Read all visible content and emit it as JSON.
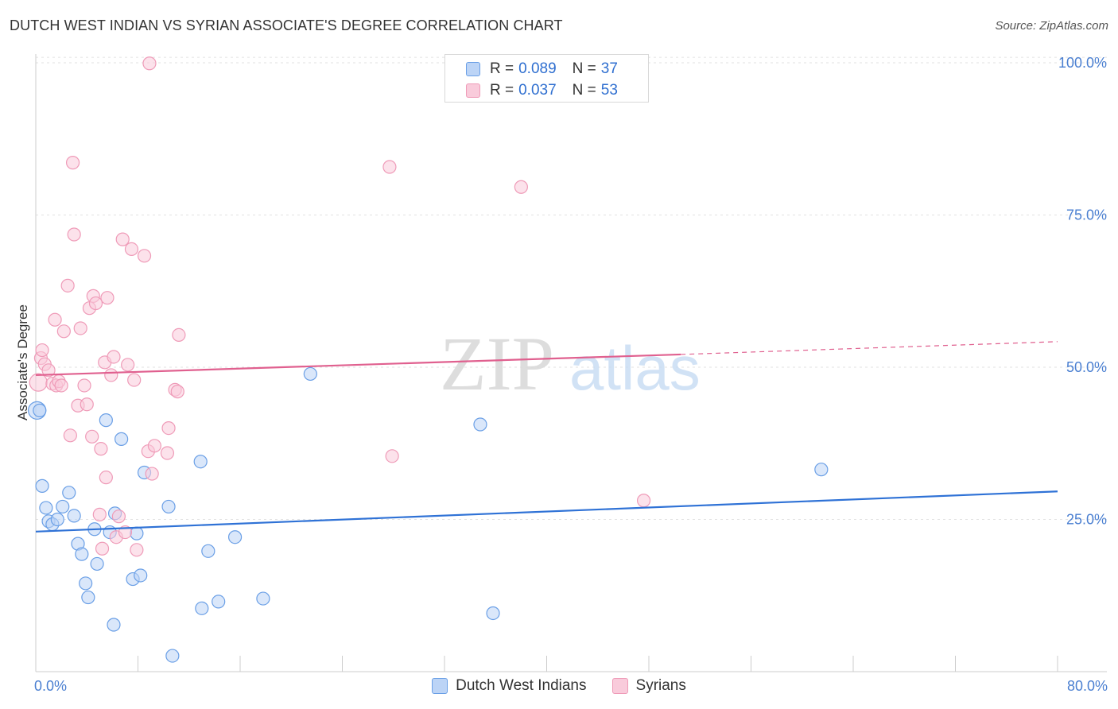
{
  "title": "DUTCH WEST INDIAN VS SYRIAN ASSOCIATE'S DEGREE CORRELATION CHART",
  "source": "Source: ZipAtlas.com",
  "watermark": {
    "zip": "ZIP",
    "atlas": "atlas"
  },
  "legend_top": [
    {
      "r_label": "R = ",
      "r_value": "0.089",
      "n_label": "N = ",
      "n_value": "37"
    },
    {
      "r_label": "R = ",
      "r_value": "0.037",
      "n_label": "N = ",
      "n_value": "53"
    }
  ],
  "legend_bottom": [
    "Dutch West Indians",
    "Syrians"
  ],
  "chart_data": {
    "type": "scatter",
    "title": "DUTCH WEST INDIAN VS SYRIAN ASSOCIATE'S DEGREE CORRELATION CHART",
    "xlabel": "",
    "ylabel": "Associate's Degree",
    "xlim": [
      0,
      80
    ],
    "ylim": [
      0,
      103
    ],
    "x_tick_labels": [
      "0.0%",
      "80.0%"
    ],
    "y_ticks": [
      25,
      50,
      75,
      100
    ],
    "y_tick_labels": [
      "25.0%",
      "50.0%",
      "75.0%",
      "100.0%"
    ],
    "grid": true,
    "legend_position": "top-center",
    "colors": {
      "dutch": "#6a9fe6",
      "dutch_line": "#2f72d6",
      "syrian": "#ef9bb8",
      "syrian_line": "#e0608f"
    },
    "series": [
      {
        "name": "Dutch West Indians",
        "r": 0.089,
        "n": 37,
        "trend": {
          "x": [
            0,
            80
          ],
          "y": [
            23.0,
            29.6
          ]
        },
        "points": [
          [
            0.1,
            42.9
          ],
          [
            0.5,
            30.5
          ],
          [
            0.8,
            26.9
          ],
          [
            1.0,
            24.7
          ],
          [
            1.3,
            24.2
          ],
          [
            1.7,
            25.0
          ],
          [
            2.1,
            27.1
          ],
          [
            2.6,
            29.4
          ],
          [
            3.0,
            25.6
          ],
          [
            3.3,
            21.0
          ],
          [
            3.6,
            19.3
          ],
          [
            3.9,
            14.5
          ],
          [
            4.1,
            12.2
          ],
          [
            4.6,
            23.4
          ],
          [
            4.8,
            17.7
          ],
          [
            5.5,
            41.3
          ],
          [
            5.8,
            22.9
          ],
          [
            6.1,
            7.7
          ],
          [
            6.2,
            26.0
          ],
          [
            6.7,
            38.2
          ],
          [
            7.6,
            15.2
          ],
          [
            7.9,
            22.7
          ],
          [
            8.2,
            15.8
          ],
          [
            8.5,
            32.7
          ],
          [
            10.4,
            27.1
          ],
          [
            10.7,
            2.6
          ],
          [
            12.9,
            34.5
          ],
          [
            13.0,
            10.4
          ],
          [
            13.5,
            19.8
          ],
          [
            14.3,
            11.5
          ],
          [
            15.6,
            22.1
          ],
          [
            17.8,
            12.0
          ],
          [
            21.5,
            48.9
          ],
          [
            34.8,
            40.6
          ],
          [
            35.8,
            9.6
          ],
          [
            61.5,
            33.2
          ],
          [
            0.3,
            42.9
          ]
        ]
      },
      {
        "name": "Syrians",
        "r": 0.037,
        "n": 53,
        "trend": {
          "x": [
            0,
            50.5
          ],
          "y": [
            48.7,
            52.1
          ]
        },
        "trend_dashed": {
          "x": [
            50.5,
            80
          ],
          "y": [
            52.1,
            54.2
          ]
        },
        "points": [
          [
            0.2,
            47.5
          ],
          [
            0.4,
            51.5
          ],
          [
            0.5,
            52.8
          ],
          [
            0.7,
            50.5
          ],
          [
            1.0,
            49.5
          ],
          [
            1.3,
            47.3
          ],
          [
            1.5,
            57.8
          ],
          [
            1.6,
            47.0
          ],
          [
            1.8,
            47.7
          ],
          [
            2.0,
            47.0
          ],
          [
            2.2,
            55.9
          ],
          [
            2.5,
            63.4
          ],
          [
            2.7,
            38.8
          ],
          [
            2.9,
            83.6
          ],
          [
            3.0,
            71.8
          ],
          [
            3.3,
            43.7
          ],
          [
            3.5,
            56.4
          ],
          [
            3.8,
            47.0
          ],
          [
            4.0,
            43.9
          ],
          [
            4.2,
            59.7
          ],
          [
            4.4,
            38.6
          ],
          [
            4.5,
            61.7
          ],
          [
            4.7,
            60.5
          ],
          [
            5.0,
            25.8
          ],
          [
            5.1,
            36.6
          ],
          [
            5.2,
            20.2
          ],
          [
            5.4,
            50.8
          ],
          [
            5.5,
            31.9
          ],
          [
            5.6,
            61.4
          ],
          [
            5.9,
            48.7
          ],
          [
            6.1,
            51.7
          ],
          [
            6.3,
            22.1
          ],
          [
            6.5,
            25.5
          ],
          [
            6.8,
            71.0
          ],
          [
            7.0,
            22.9
          ],
          [
            7.2,
            50.4
          ],
          [
            7.5,
            69.4
          ],
          [
            7.7,
            47.9
          ],
          [
            7.9,
            20.0
          ],
          [
            8.5,
            68.3
          ],
          [
            8.8,
            36.2
          ],
          [
            8.9,
            99.9
          ],
          [
            9.1,
            32.5
          ],
          [
            9.3,
            37.1
          ],
          [
            10.3,
            35.9
          ],
          [
            10.4,
            40.0
          ],
          [
            10.9,
            46.3
          ],
          [
            11.1,
            46.0
          ],
          [
            11.2,
            55.3
          ],
          [
            27.7,
            82.9
          ],
          [
            27.9,
            35.4
          ],
          [
            38.0,
            79.6
          ],
          [
            47.6,
            28.1
          ]
        ]
      }
    ]
  }
}
